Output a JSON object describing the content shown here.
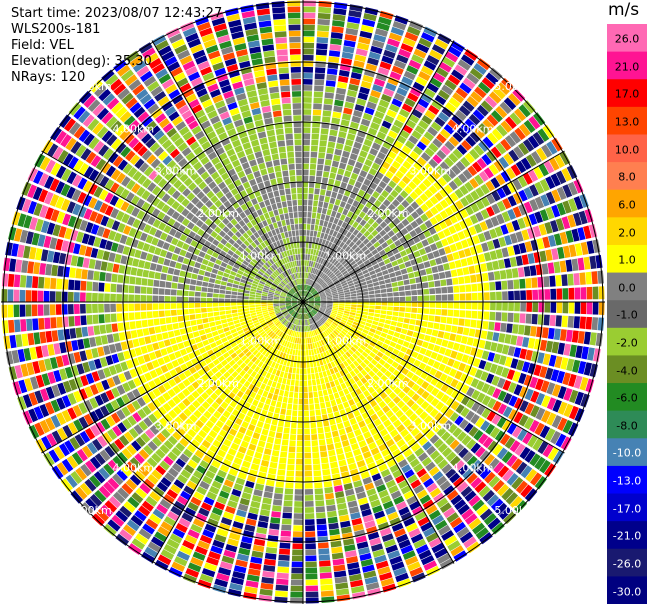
{
  "info": {
    "start_time": "Start time: 2023/08/07 12:43:27",
    "instrument": "WLS200s-181",
    "field": "Field: VEL",
    "elevation": "Elevation(deg): 35.30",
    "nrays": "NRays: 120"
  },
  "colorbar": {
    "unit": "m/s",
    "levels": [
      {
        "value": "26.0",
        "color": "#ff69b4"
      },
      {
        "value": "21.0",
        "color": "#ff1493"
      },
      {
        "value": "17.0",
        "color": "#ff0000"
      },
      {
        "value": "13.0",
        "color": "#ff4500"
      },
      {
        "value": "10.0",
        "color": "#ff6347"
      },
      {
        "value": "8.0",
        "color": "#ff7f50"
      },
      {
        "value": "6.0",
        "color": "#ffa500"
      },
      {
        "value": "2.0",
        "color": "#ffd700"
      },
      {
        "value": "1.0",
        "color": "#ffff00"
      },
      {
        "value": "0.0",
        "color": "#808080"
      },
      {
        "value": "-1.0",
        "color": "#696969"
      },
      {
        "value": "-2.0",
        "color": "#9acd32"
      },
      {
        "value": "-4.0",
        "color": "#6b8e23"
      },
      {
        "value": "-6.0",
        "color": "#228b22"
      },
      {
        "value": "-8.0",
        "color": "#2e8b57"
      },
      {
        "value": "-10.0",
        "color": "#4682b4"
      },
      {
        "value": "-13.0",
        "color": "#0000ff"
      },
      {
        "value": "-17.0",
        "color": "#0000cd"
      },
      {
        "value": "-21.0",
        "color": "#00008b"
      },
      {
        "value": "-26.0",
        "color": "#191970"
      },
      {
        "value": "-30.0",
        "color": "#000080"
      }
    ]
  },
  "range_rings": [
    {
      "label": "1.00km",
      "km": 1
    },
    {
      "label": "2.00km",
      "km": 2
    },
    {
      "label": "3.00km",
      "km": 3
    },
    {
      "label": "4.00km",
      "km": 4
    },
    {
      "label": "5.00km",
      "km": 5
    }
  ]
}
